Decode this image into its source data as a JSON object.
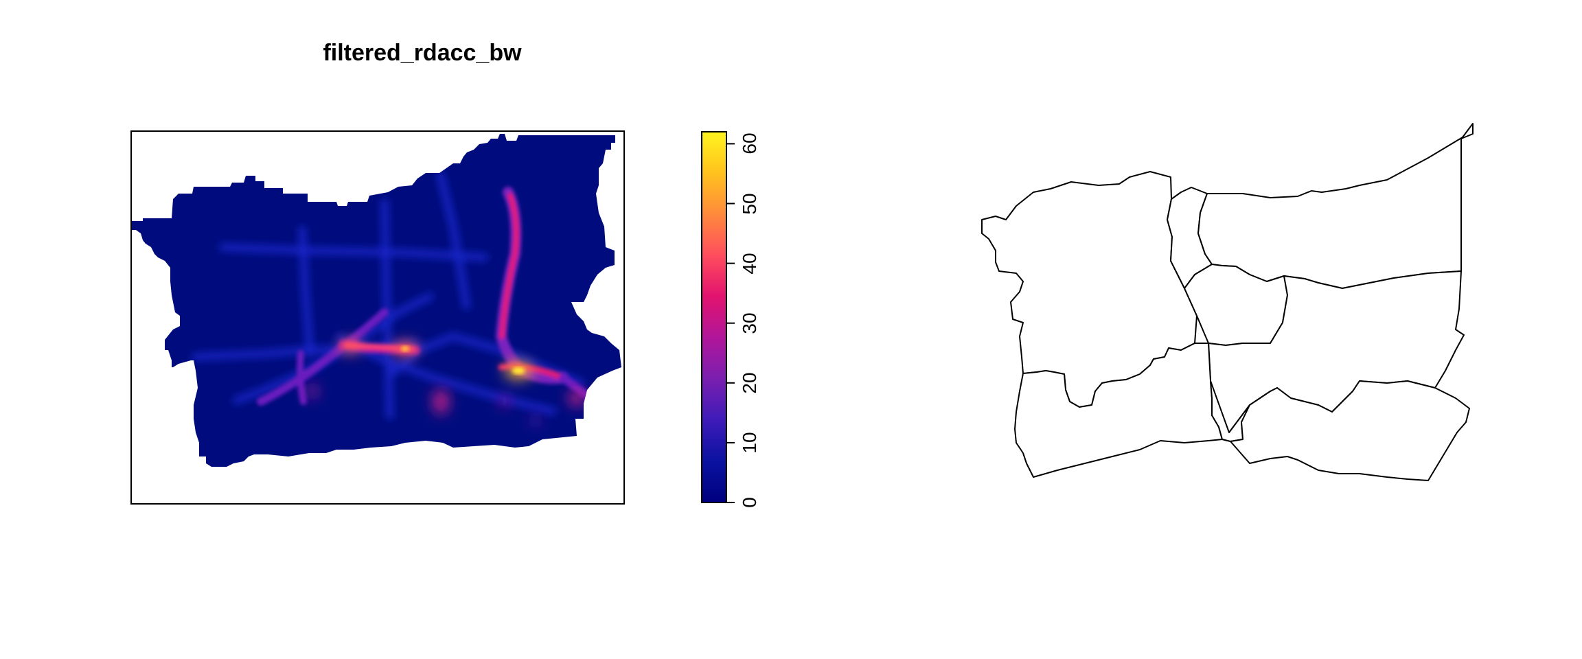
{
  "plot": {
    "title": "filtered_rdacc_bw"
  },
  "legend": {
    "min": 0,
    "max": 62,
    "ticks": [
      {
        "value": 0,
        "label": "0"
      },
      {
        "value": 10,
        "label": "10"
      },
      {
        "value": 20,
        "label": "20"
      },
      {
        "value": 30,
        "label": "30"
      },
      {
        "value": 40,
        "label": "40"
      },
      {
        "value": 50,
        "label": "50"
      },
      {
        "value": 60,
        "label": "60"
      }
    ],
    "palette": [
      "#00007F",
      "#0A12A0",
      "#3E1BB8",
      "#7A1FB0",
      "#B0169A",
      "#E2136F",
      "#FF4D5E",
      "#FF8A3C",
      "#FFC21E",
      "#FFF41F"
    ]
  },
  "raster": {
    "background_color": "#000C7D",
    "border_color": "#000000"
  },
  "boundary_map": {
    "region_count": 9,
    "stroke_color": "#000000",
    "fill_color": "#FFFFFF"
  }
}
